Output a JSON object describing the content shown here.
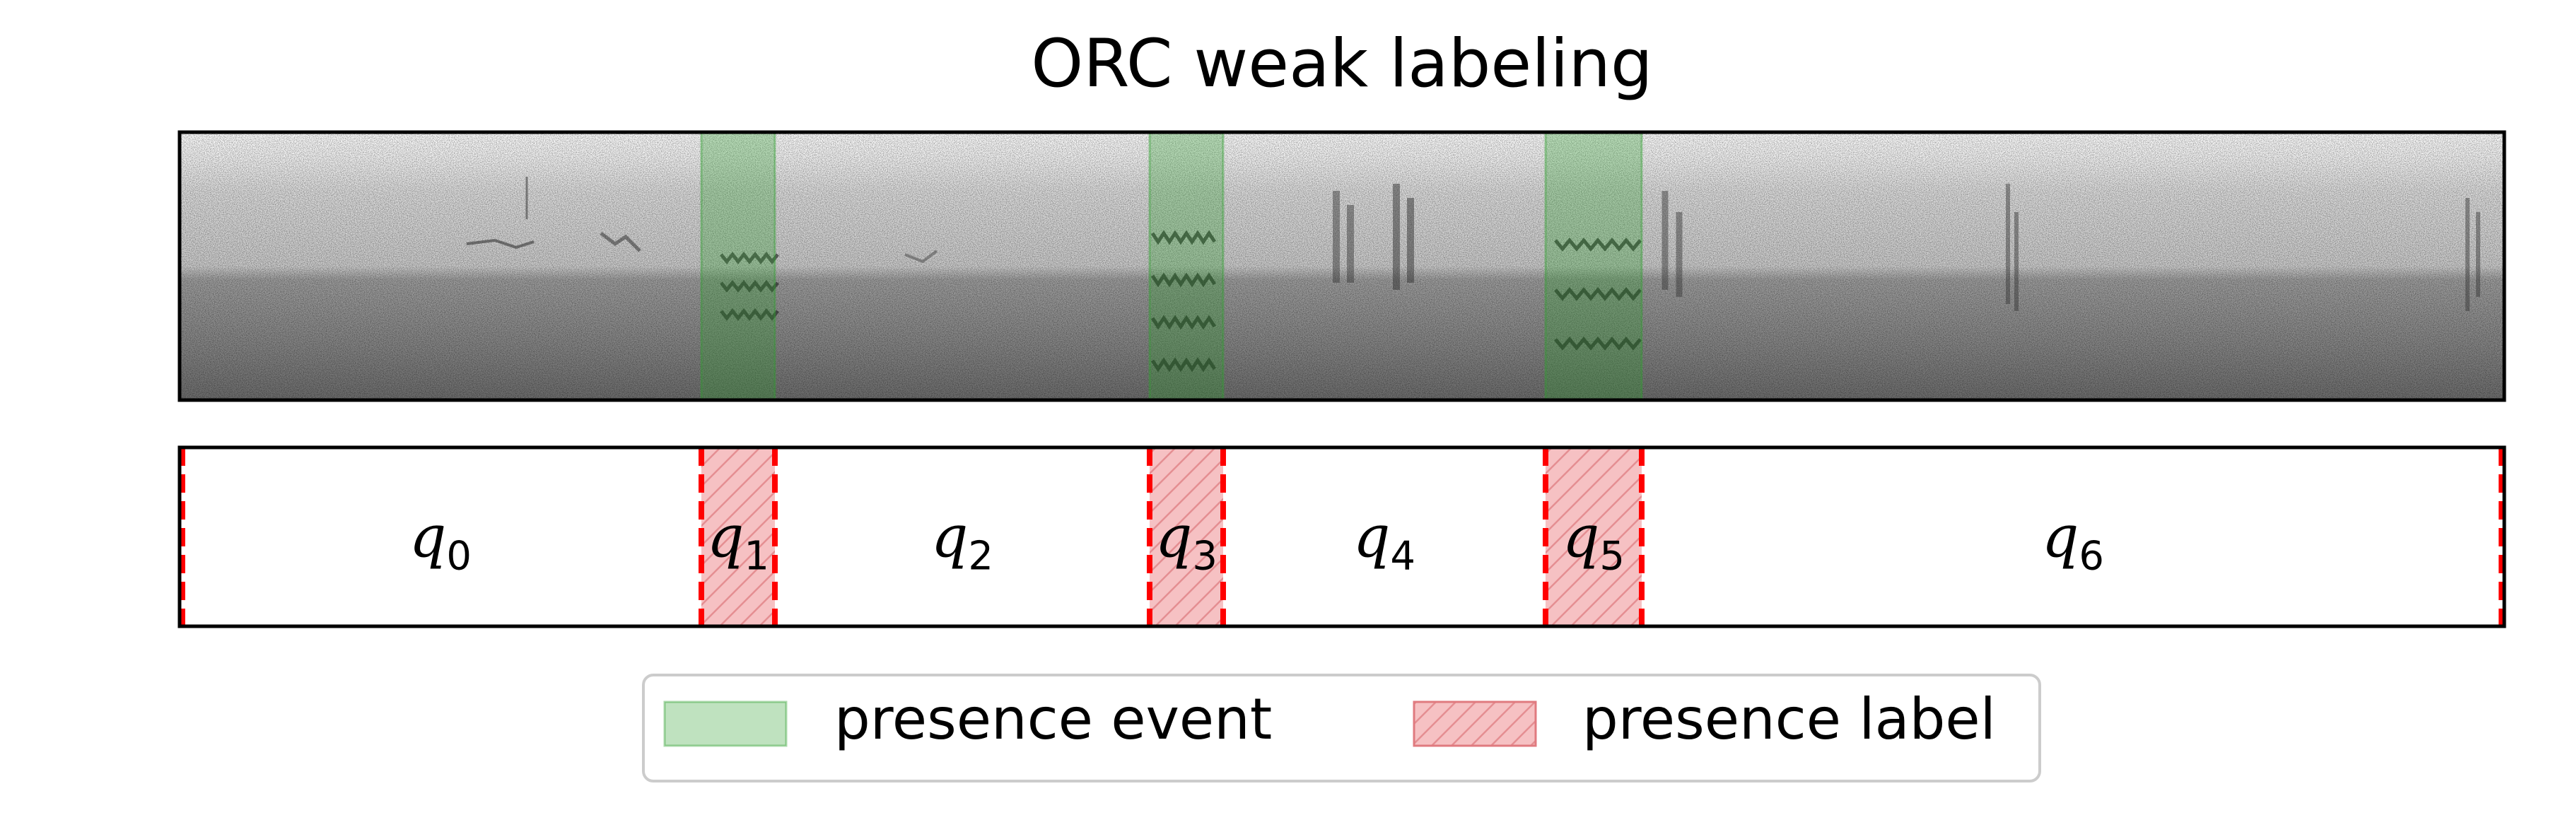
{
  "chart_data": {
    "type": "timeline",
    "title": "ORC weak labeling",
    "xlim": [
      0,
      3288
    ],
    "spectrogram": {
      "ticks": "off",
      "grid": "off",
      "colormap": "gray_r"
    },
    "presence_events": [
      {
        "start": 738,
        "end": 842
      },
      {
        "start": 1372,
        "end": 1476
      },
      {
        "start": 1932,
        "end": 2068
      }
    ],
    "segments": [
      {
        "label": "q",
        "index": "0",
        "start": 0,
        "end": 738,
        "presence": false
      },
      {
        "label": "q",
        "index": "1",
        "start": 738,
        "end": 842,
        "presence": true
      },
      {
        "label": "q",
        "index": "2",
        "start": 842,
        "end": 1372,
        "presence": false
      },
      {
        "label": "q",
        "index": "3",
        "start": 1372,
        "end": 1476,
        "presence": true
      },
      {
        "label": "q",
        "index": "4",
        "start": 1476,
        "end": 1932,
        "presence": false
      },
      {
        "label": "q",
        "index": "5",
        "start": 1932,
        "end": 2068,
        "presence": true
      },
      {
        "label": "q",
        "index": "6",
        "start": 2068,
        "end": 3288,
        "presence": false
      }
    ],
    "legend": {
      "placement": "bottom-center",
      "entries": [
        {
          "label": "presence event",
          "style": "solid-green"
        },
        {
          "label": "presence label",
          "style": "hatched-red"
        }
      ]
    }
  },
  "colors": {
    "event_fill": "#2ca02c",
    "label_fill": "#f4b6b8",
    "label_hatch": "#e07a7f",
    "boundary": "#ff0000",
    "frame": "#000000",
    "legend_border": "#cccccc"
  }
}
